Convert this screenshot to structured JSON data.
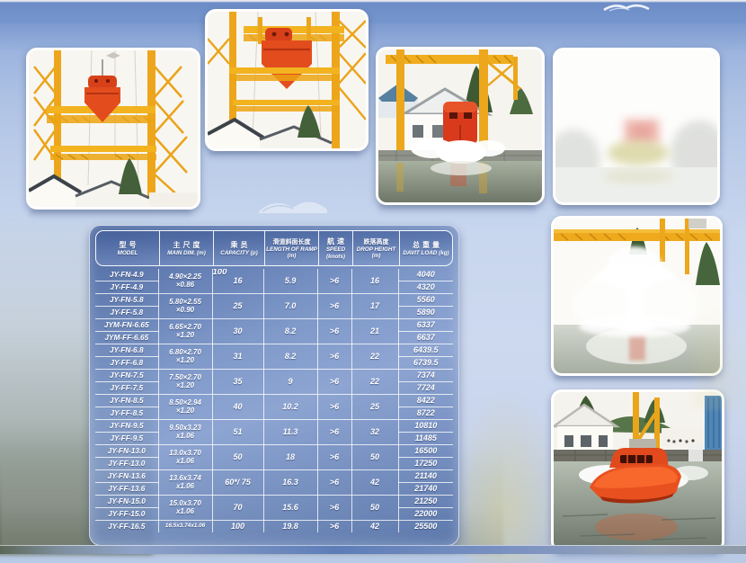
{
  "colors": {
    "crane_yellow": "#efa91c",
    "boat_orange": "#e2491d",
    "table_blue": "#5b79b6",
    "sky_blue": "#a9bfe2"
  },
  "table": {
    "headers": [
      {
        "zh": "型号",
        "en": "MODEL"
      },
      {
        "zh": "主尺度",
        "en": "MAIN DIM. (m)"
      },
      {
        "zh": "乘员",
        "en": "CAPACITY (p)"
      },
      {
        "zh": "滑道斜面长度",
        "en": "LENGTH OF RAMP (m)"
      },
      {
        "zh": "航速",
        "en": "SPEED (knots)"
      },
      {
        "zh": "跌落高度",
        "en": "DROP HEIGHT (m)"
      },
      {
        "zh": "总重量",
        "en": "DAVIT LOAD (kg)"
      }
    ],
    "stray_label": "100",
    "groups": [
      {
        "models": [
          "JY-FN-4.9",
          "JY-FF-4.9"
        ],
        "dim": [
          "4.90×2.25",
          "×0.86"
        ],
        "capacity": "16",
        "ramp": "5.9",
        "speed": ">6",
        "drop": "16",
        "loads": [
          "4040",
          "4320"
        ]
      },
      {
        "models": [
          "JY-FN-5.8",
          "JY-FF-5.8"
        ],
        "dim": [
          "5.80×2.55",
          "×0.90"
        ],
        "capacity": "25",
        "ramp": "7.0",
        "speed": ">6",
        "drop": "17",
        "loads": [
          "5560",
          "5890"
        ]
      },
      {
        "models": [
          "JYM-FN-6.65",
          "JYM-FF-6.65"
        ],
        "dim": [
          "6.65×2.70",
          "×1.20"
        ],
        "capacity": "30",
        "ramp": "8.2",
        "speed": ">6",
        "drop": "21",
        "loads": [
          "6337",
          "6637"
        ]
      },
      {
        "models": [
          "JY-FN-6.8",
          "JY-FF-6.8"
        ],
        "dim": [
          "6.80×2.70",
          "×1.20"
        ],
        "capacity": "31",
        "ramp": "8.2",
        "speed": ">6",
        "drop": "22",
        "loads": [
          "6439.5",
          "6739.5"
        ]
      },
      {
        "models": [
          "JY-FN-7.5",
          "JY-FF-7.5"
        ],
        "dim": [
          "7.50×2.70",
          "×1.20"
        ],
        "capacity": "35",
        "ramp": "9",
        "speed": ">6",
        "drop": "22",
        "loads": [
          "7374",
          "7724"
        ]
      },
      {
        "models": [
          "JY-FN-8.5",
          "JY-FF-8.5"
        ],
        "dim": [
          "8.50×2.94",
          "×1.20"
        ],
        "capacity": "40",
        "ramp": "10.2",
        "speed": ">6",
        "drop": "25",
        "loads": [
          "8422",
          "8722"
        ]
      },
      {
        "models": [
          "JY-FN-9.5",
          "JY-FF-9.5"
        ],
        "dim": [
          "9.50x3.23",
          "x1.06"
        ],
        "capacity": "51",
        "ramp": "11.3",
        "speed": ">6",
        "drop": "32",
        "loads": [
          "10810",
          "11485"
        ]
      },
      {
        "models": [
          "JY-FN-13.0",
          "JY-FF-13.0"
        ],
        "dim": [
          "13.0x3.70",
          "x1.06"
        ],
        "capacity": "50",
        "ramp": "18",
        "speed": ">6",
        "drop": "50",
        "loads": [
          "16500",
          "17250"
        ]
      },
      {
        "models": [
          "JY-FN-13.6",
          "JY-FF-13.6"
        ],
        "dim": [
          "13.6x3.74",
          "x1.06"
        ],
        "capacity": "60*/ 75",
        "ramp": "16.3",
        "speed": ">6",
        "drop": "42",
        "loads": [
          "21140",
          "21740"
        ]
      },
      {
        "models": [
          "JY-FN-15.0",
          "JY-FF-15.0"
        ],
        "dim": [
          "15.0x3.70",
          "x1.06"
        ],
        "capacity": "70",
        "ramp": "15.6",
        "speed": ">6",
        "drop": "50",
        "loads": [
          "21250",
          "22000"
        ]
      },
      {
        "models": [
          "JY-FF-16.5"
        ],
        "dim": [
          "16.5x3.74x1.06"
        ],
        "capacity": "100",
        "ramp": "19.8",
        "speed": ">6",
        "drop": "42",
        "loads": [
          "25500"
        ]
      }
    ]
  }
}
